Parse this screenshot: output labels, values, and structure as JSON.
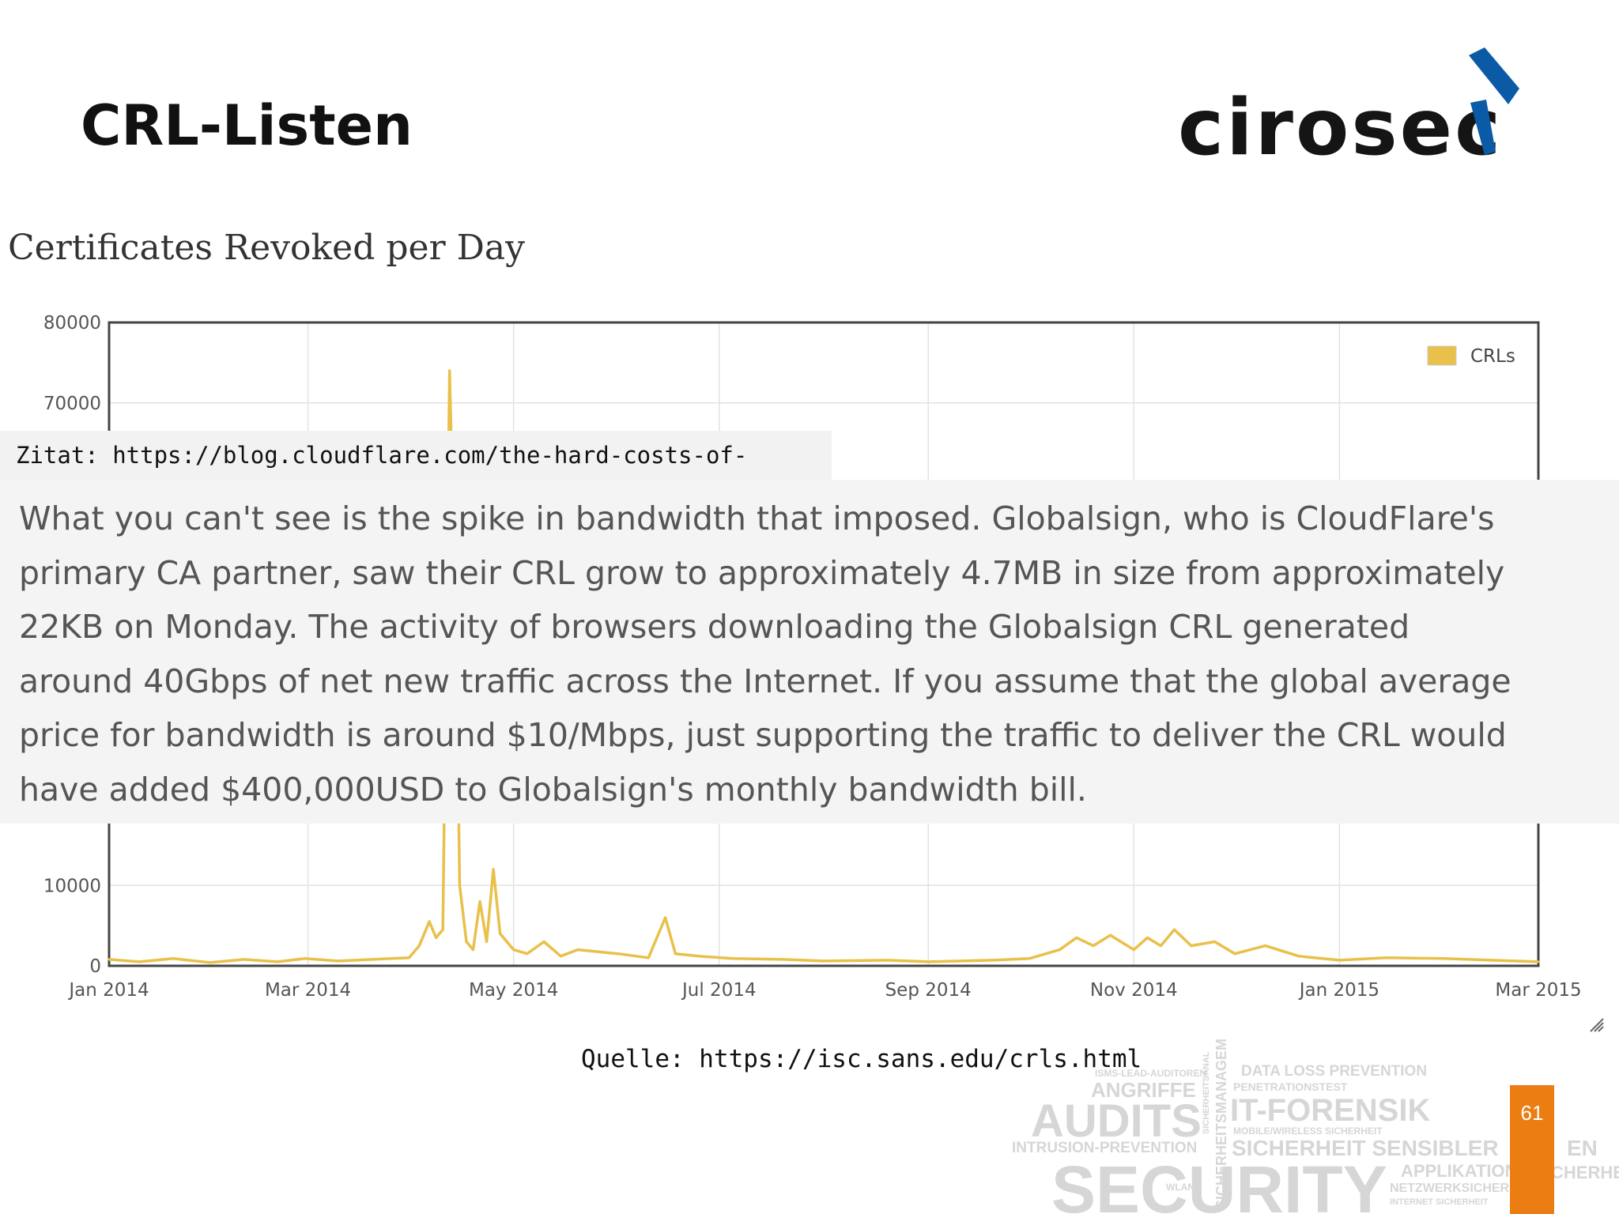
{
  "slide": {
    "title": "CRL-Listen",
    "logo_text": "cirosec",
    "page_number": "61"
  },
  "colors": {
    "brand_blue": "#0b5aa6",
    "accent_orange": "#ec7d12",
    "series_crls": "#e8c04a"
  },
  "quote": {
    "source": "Zitat: https://blog.cloudflare.com/the-hard-costs-of-heartbleed/",
    "lines": [
      "What you can't see is the spike in bandwidth that imposed. Globalsign, who is CloudFlare's",
      "primary CA partner, saw their CRL grow to approximately 4.7MB in size from approximately",
      "22KB on Monday. The activity of browsers downloading the Globalsign CRL generated",
      "around 40Gbps of net new traffic across the Internet. If you assume that the global average",
      "price for bandwidth is around $10/Mbps, just supporting the traffic to deliver the CRL would",
      "have added $400,000USD to Globalsign's monthly bandwidth bill."
    ]
  },
  "source_text": "Quelle: https://isc.sans.edu/crls.html",
  "wordcloud": [
    "ISMS-LEAD-AUDITOREN",
    "ANGRIFFE",
    "DATA LOSS PREVENTION",
    "PENETRATIONSTEST",
    "AUDITS",
    "IT-FORENSIK",
    "MOBILE/WIRELESS SICHERHEIT",
    "INTRUSION-PREVENTION",
    "SICHERHEIT SENSIBLER",
    "SECURITY",
    "APPLIKATION",
    "NETZWERKSICHER",
    "INTERNET SICHERHEIT",
    "WLAN",
    "SICHERHEITSANAL",
    "SICHERHEITSMANAGEM",
    "EN",
    "CHERHE"
  ],
  "chart_data": {
    "type": "line",
    "title": "Certificates Revoked per Day",
    "xlabel": "",
    "ylabel": "",
    "ylim": [
      0,
      80000
    ],
    "yticks": [
      "0",
      "10000",
      "70000",
      "80000"
    ],
    "xticks": [
      "Jan 2014",
      "Mar 2014",
      "May 2014",
      "Jul 2014",
      "Sep 2014",
      "Nov 2014",
      "Jan 2015",
      "Mar 2015"
    ],
    "xlim": [
      "2014-01-01",
      "2015-03-01"
    ],
    "grid": true,
    "legend": "top-right",
    "series": [
      {
        "name": "CRLs",
        "points": [
          [
            "2014-01-01",
            800
          ],
          [
            "2014-01-10",
            500
          ],
          [
            "2014-01-20",
            900
          ],
          [
            "2014-01-31",
            400
          ],
          [
            "2014-02-10",
            800
          ],
          [
            "2014-02-20",
            500
          ],
          [
            "2014-02-28",
            900
          ],
          [
            "2014-03-10",
            600
          ],
          [
            "2014-03-20",
            800
          ],
          [
            "2014-03-31",
            1000
          ],
          [
            "2014-04-03",
            2500
          ],
          [
            "2014-04-06",
            5500
          ],
          [
            "2014-04-08",
            3500
          ],
          [
            "2014-04-10",
            4500
          ],
          [
            "2014-04-12",
            74000
          ],
          [
            "2014-04-14",
            40000
          ],
          [
            "2014-04-15",
            10000
          ],
          [
            "2014-04-17",
            3000
          ],
          [
            "2014-04-19",
            2000
          ],
          [
            "2014-04-21",
            8000
          ],
          [
            "2014-04-23",
            3000
          ],
          [
            "2014-04-25",
            12000
          ],
          [
            "2014-04-27",
            4000
          ],
          [
            "2014-05-01",
            2000
          ],
          [
            "2014-05-05",
            1500
          ],
          [
            "2014-05-10",
            3000
          ],
          [
            "2014-05-15",
            1200
          ],
          [
            "2014-05-20",
            2000
          ],
          [
            "2014-06-01",
            1500
          ],
          [
            "2014-06-10",
            1000
          ],
          [
            "2014-06-15",
            6000
          ],
          [
            "2014-06-18",
            1500
          ],
          [
            "2014-06-25",
            1200
          ],
          [
            "2014-07-05",
            900
          ],
          [
            "2014-07-20",
            800
          ],
          [
            "2014-08-01",
            600
          ],
          [
            "2014-08-20",
            700
          ],
          [
            "2014-09-01",
            500
          ],
          [
            "2014-09-20",
            700
          ],
          [
            "2014-10-01",
            900
          ],
          [
            "2014-10-10",
            2000
          ],
          [
            "2014-10-15",
            3500
          ],
          [
            "2014-10-20",
            2500
          ],
          [
            "2014-10-25",
            3800
          ],
          [
            "2014-11-01",
            2000
          ],
          [
            "2014-11-05",
            3500
          ],
          [
            "2014-11-09",
            2500
          ],
          [
            "2014-11-13",
            4500
          ],
          [
            "2014-11-18",
            2500
          ],
          [
            "2014-11-25",
            3000
          ],
          [
            "2014-12-01",
            1500
          ],
          [
            "2014-12-10",
            2500
          ],
          [
            "2014-12-20",
            1200
          ],
          [
            "2015-01-01",
            700
          ],
          [
            "2015-01-15",
            1000
          ],
          [
            "2015-02-01",
            900
          ],
          [
            "2015-02-15",
            700
          ],
          [
            "2015-03-01",
            500
          ]
        ]
      }
    ]
  }
}
